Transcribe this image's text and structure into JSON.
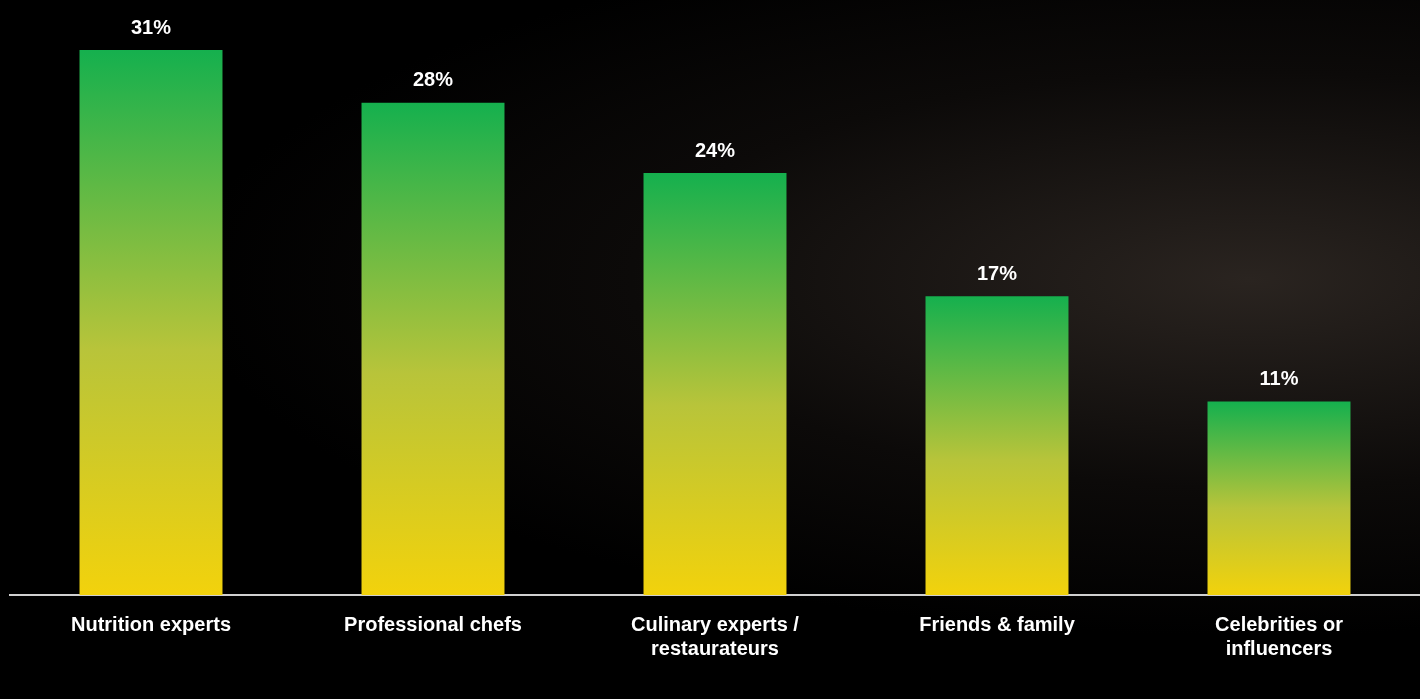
{
  "chart_data": {
    "type": "bar",
    "categories": [
      "Nutrition experts",
      "Professional chefs",
      "Culinary experts / restaurateurs",
      "Friends & family",
      "Celebrities or influencers"
    ],
    "values": [
      31,
      28,
      24,
      17,
      11
    ],
    "value_labels": [
      "31%",
      "28%",
      "24%",
      "17%",
      "11%"
    ],
    "data_labels": true,
    "color": "#15b04e",
    "ylim": [
      0,
      31
    ],
    "grid": false,
    "tick_labels": "x"
  }
}
